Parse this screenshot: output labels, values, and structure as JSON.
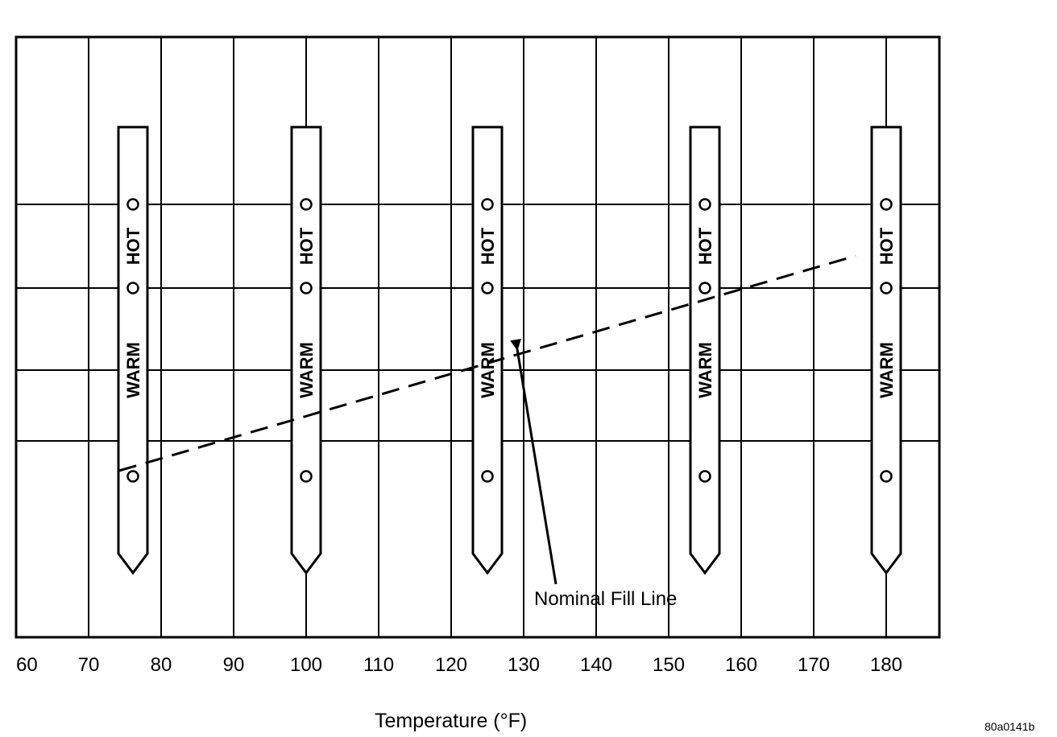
{
  "x_axis": {
    "title": "Temperature (°F)",
    "ticks": [
      "60",
      "70",
      "80",
      "90",
      "100",
      "110",
      "120",
      "130",
      "140",
      "150",
      "160",
      "170",
      "180"
    ]
  },
  "dipsticks": [
    {
      "temp": 75,
      "hot_label": "HOT",
      "warm_label": "WARM"
    },
    {
      "temp": 100,
      "hot_label": "HOT",
      "warm_label": "WARM"
    },
    {
      "temp": 125,
      "hot_label": "HOT",
      "warm_label": "WARM"
    },
    {
      "temp": 155,
      "hot_label": "HOT",
      "warm_label": "WARM"
    },
    {
      "temp": 180,
      "hot_label": "HOT",
      "warm_label": "WARM"
    }
  ],
  "callout": {
    "label": "Nominal Fill Line"
  },
  "figure_code": "80a0141b"
}
